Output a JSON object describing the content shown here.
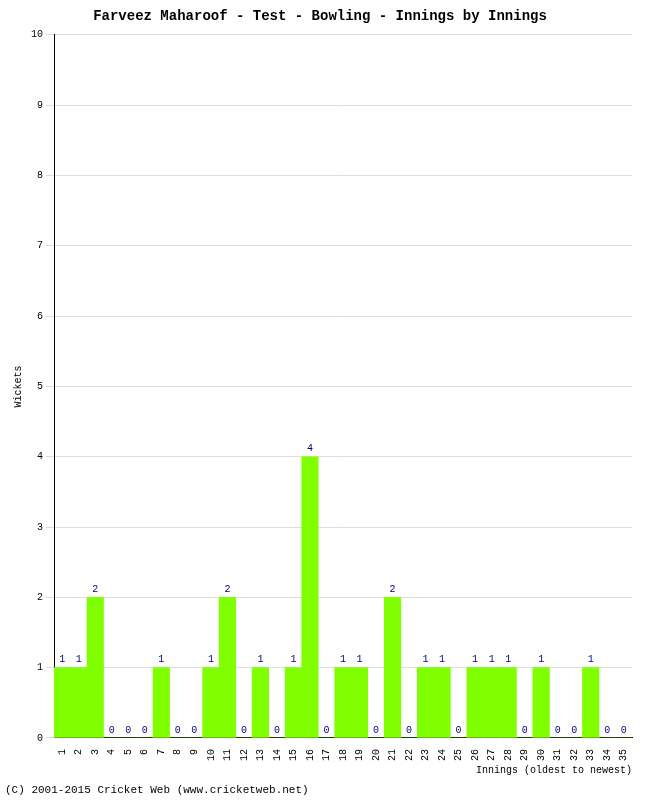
{
  "chart_data": {
    "type": "bar",
    "title": "Farveez Maharoof - Test - Bowling - Innings by Innings",
    "xlabel": "Innings (oldest to newest)",
    "ylabel": "Wickets",
    "annotations": [
      "(C) 2001-2015 Cricket Web (www.cricketweb.net)"
    ],
    "categories": [
      "1",
      "2",
      "3",
      "4",
      "5",
      "6",
      "7",
      "8",
      "9",
      "10",
      "11",
      "12",
      "13",
      "14",
      "15",
      "16",
      "17",
      "18",
      "19",
      "20",
      "21",
      "22",
      "23",
      "24",
      "25",
      "26",
      "27",
      "28",
      "29",
      "30",
      "31",
      "32",
      "33",
      "34",
      "35"
    ],
    "values": [
      1,
      1,
      2,
      0,
      0,
      0,
      1,
      0,
      0,
      1,
      2,
      0,
      1,
      0,
      1,
      4,
      0,
      1,
      1,
      0,
      2,
      0,
      1,
      1,
      0,
      1,
      1,
      1,
      0,
      1,
      0,
      0,
      1,
      0,
      0
    ],
    "color": "#80ff00",
    "ylim": [
      0,
      10
    ],
    "yticks": [
      0,
      1,
      2,
      3,
      4,
      5,
      6,
      7,
      8,
      9,
      10
    ],
    "grid": true,
    "data_labels": true
  }
}
